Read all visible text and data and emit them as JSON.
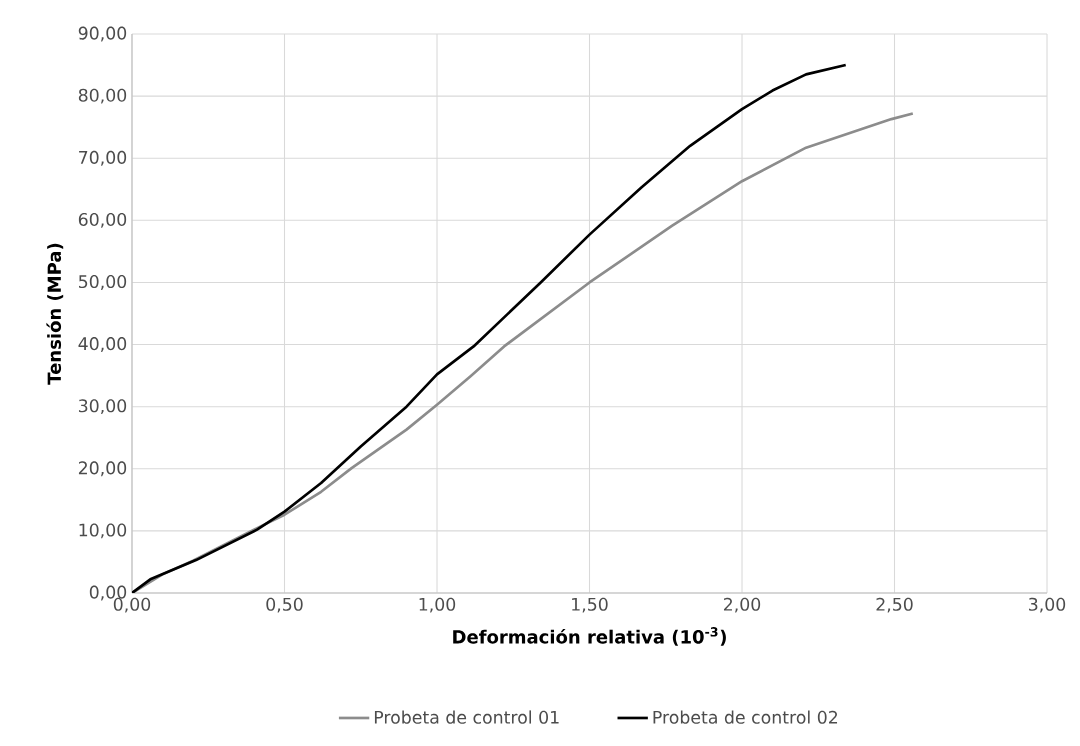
{
  "chart_data": {
    "type": "line",
    "xlabel": "Deformación relativa (10$^{-3}$)",
    "ylabel": "Tensión (MPa)",
    "xlim": [
      0,
      3
    ],
    "ylim": [
      0,
      90
    ],
    "xticks": [
      {
        "value": 0,
        "label": "0,00"
      },
      {
        "value": 0.5,
        "label": "0,50"
      },
      {
        "value": 1,
        "label": "1,00"
      },
      {
        "value": 1.5,
        "label": "1,50"
      },
      {
        "value": 2,
        "label": "2,00"
      },
      {
        "value": 2.5,
        "label": "2,50"
      },
      {
        "value": 3,
        "label": "3,00"
      }
    ],
    "yticks": [
      {
        "value": 0,
        "label": "0,00"
      },
      {
        "value": 10,
        "label": "10,00"
      },
      {
        "value": 20,
        "label": "20,00"
      },
      {
        "value": 30,
        "label": "30,00"
      },
      {
        "value": 40,
        "label": "40,00"
      },
      {
        "value": 50,
        "label": "50,00"
      },
      {
        "value": 60,
        "label": "60,00"
      },
      {
        "value": 70,
        "label": "70,00"
      },
      {
        "value": 80,
        "label": "80,00"
      },
      {
        "value": 90,
        "label": "90,00"
      }
    ],
    "grid": true,
    "legend": "bottom",
    "marker": "none",
    "line_style": "solid",
    "series": [
      {
        "name": "Probeta de control 01",
        "color": "#8c8c8c",
        "x": [
          0,
          0.1,
          0.2,
          0.3,
          0.4,
          0.5,
          0.62,
          0.72,
          0.9,
          1.0,
          1.11,
          1.22,
          1.5,
          1.77,
          2.0,
          2.21,
          2.49,
          2.56
        ],
        "values": [
          0,
          3.0,
          5.2,
          7.7,
          10.2,
          12.6,
          16.3,
          20.1,
          26.3,
          30.3,
          34.9,
          39.7,
          50.0,
          59.1,
          66.3,
          71.7,
          76.3,
          77.2
        ]
      },
      {
        "name": "Probeta de control 02",
        "color": "#000000",
        "x": [
          0,
          0.06,
          0.21,
          0.41,
          0.5,
          0.62,
          0.75,
          0.9,
          1.0,
          1.12,
          1.34,
          1.5,
          1.67,
          1.83,
          2.0,
          2.1,
          2.21,
          2.34
        ],
        "values": [
          0,
          2.2,
          5.3,
          10.2,
          13.1,
          17.7,
          23.6,
          30.0,
          35.2,
          39.7,
          50.0,
          57.7,
          65.3,
          72.0,
          77.9,
          80.9,
          83.5,
          85.0
        ]
      }
    ]
  }
}
